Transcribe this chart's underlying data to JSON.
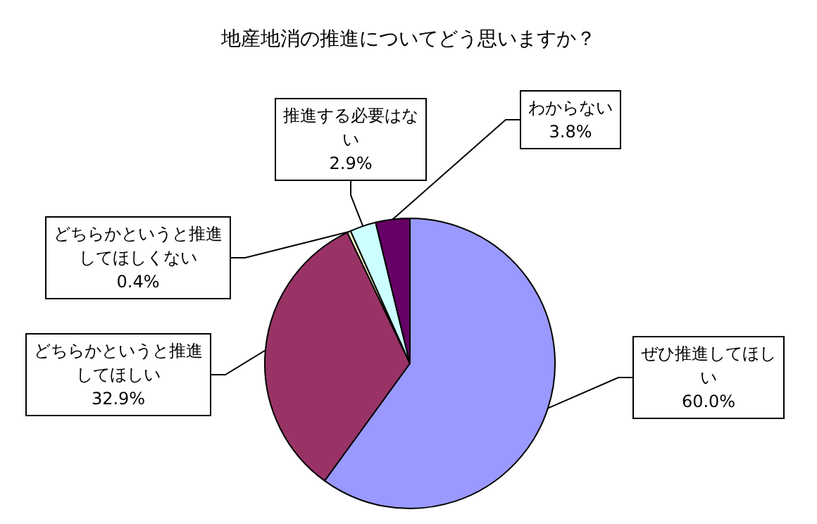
{
  "chart_data": {
    "type": "pie",
    "title": "地産地消の推進についてどう思いますか？",
    "categories": [
      "ぜひ推進してほしい",
      "どちらかというと推進してほしい",
      "どちらかというと推進してほしくない",
      "推進する必要はない",
      "わからない"
    ],
    "values": [
      60.0,
      32.9,
      0.4,
      2.9,
      3.8
    ],
    "colors": [
      "#9999ff",
      "#993366",
      "#ffffcc",
      "#ccffff",
      "#660066"
    ],
    "value_labels": [
      "60.0%",
      "32.9%",
      "0.4%",
      "2.9%",
      "3.8%"
    ],
    "legend": false
  }
}
